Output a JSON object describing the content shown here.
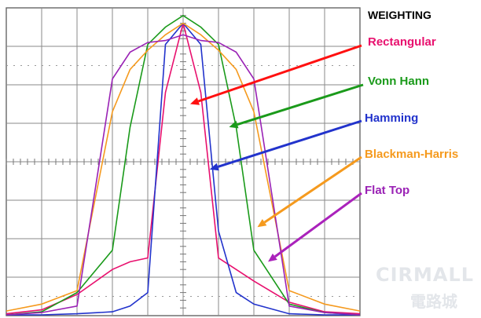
{
  "chart_data": {
    "type": "line",
    "title": "WEIGHTING",
    "grid": true,
    "x": [
      -5,
      -4,
      -3,
      -2,
      -1.5,
      -1,
      -0.5,
      0,
      0.5,
      1,
      1.5,
      2,
      3,
      4,
      5
    ],
    "ylim": [
      0,
      8
    ],
    "xlim": [
      -5,
      5
    ],
    "series": [
      {
        "name": "Rectangular",
        "color": "#e8106e",
        "values": [
          0.05,
          0.15,
          0.55,
          1.2,
          1.4,
          1.5,
          5.8,
          7.6,
          5.8,
          1.5,
          1.2,
          0.9,
          0.35,
          0.1,
          0.05
        ]
      },
      {
        "name": "Vonn Hann",
        "color": "#1a9a1a",
        "values": [
          0.02,
          0.1,
          0.6,
          1.7,
          4.9,
          7.05,
          7.5,
          7.8,
          7.5,
          7.05,
          4.9,
          1.7,
          0.3,
          0.08,
          0.02
        ]
      },
      {
        "name": "Hamming",
        "color": "#2233cc",
        "values": [
          0.02,
          0.02,
          0.05,
          0.1,
          0.25,
          0.6,
          7.05,
          7.6,
          7.05,
          2.2,
          0.6,
          0.3,
          0.05,
          0.02,
          0.02
        ]
      },
      {
        "name": "Blackman-Harris",
        "color": "#f59a1e",
        "values": [
          0.12,
          0.3,
          0.65,
          5.3,
          6.4,
          6.9,
          7.3,
          7.6,
          7.3,
          6.9,
          6.4,
          5.3,
          0.65,
          0.3,
          0.12
        ]
      },
      {
        "name": "Flat Top",
        "color": "#9a22b5",
        "values": [
          0.02,
          0.08,
          0.25,
          6.15,
          6.85,
          7.1,
          7.15,
          7.3,
          7.15,
          7.1,
          6.85,
          6.15,
          0.25,
          0.08,
          0.02
        ]
      }
    ],
    "legend": [
      {
        "label": "Rectangular",
        "color": "#e8106e"
      },
      {
        "label": "Vonn Hann",
        "color": "#1a9a1a"
      },
      {
        "label": "Hamming",
        "color": "#2233cc"
      },
      {
        "label": "Blackman-Harris",
        "color": "#f59a1e"
      },
      {
        "label": "Flat Top",
        "color": "#9a22b5"
      }
    ],
    "arrows": [
      {
        "label": "Rectangular",
        "color": "#ff1010",
        "points_to": {
          "x": 0.2,
          "y": 5.5
        }
      },
      {
        "label": "Vonn Hann",
        "color": "#1a9a1a",
        "points_to": {
          "x": 1.3,
          "y": 4.9
        }
      },
      {
        "label": "Hamming",
        "color": "#2233cc",
        "points_to": {
          "x": 0.75,
          "y": 3.8
        }
      },
      {
        "label": "Blackman-Harris",
        "color": "#f59a1e",
        "points_to": {
          "x": 2.1,
          "y": 2.3
        }
      },
      {
        "label": "Flat Top",
        "color": "#aa22bb",
        "points_to": {
          "x": 2.4,
          "y": 1.4
        }
      }
    ]
  },
  "watermark": {
    "brand": "CIRMALL",
    "cn": "電路城"
  }
}
